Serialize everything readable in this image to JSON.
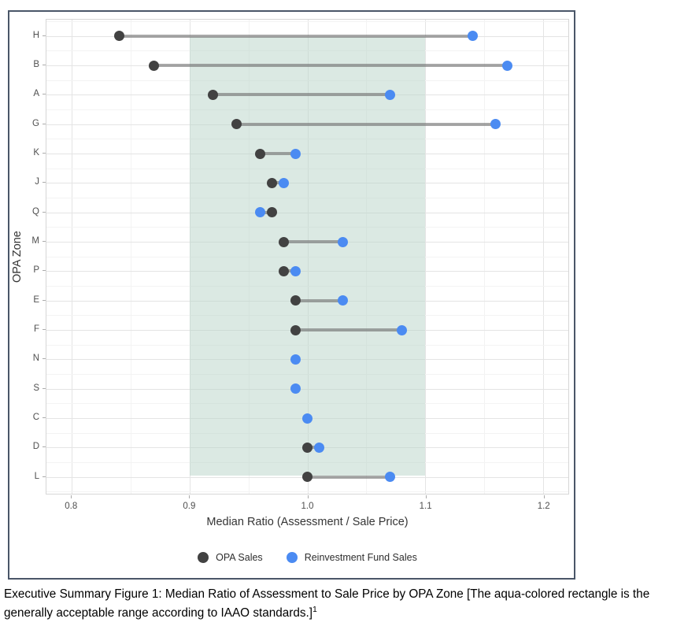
{
  "chart_data": {
    "type": "scatter",
    "variant": "dumbbell",
    "orientation": "horizontal",
    "title": "",
    "xlabel": "Median Ratio (Assessment / Sale Price)",
    "ylabel": "OPA Zone",
    "categories": [
      "H",
      "B",
      "A",
      "G",
      "K",
      "J",
      "Q",
      "M",
      "P",
      "E",
      "F",
      "N",
      "S",
      "C",
      "D",
      "L"
    ],
    "series": [
      {
        "name": "OPA Sales",
        "color": "#424242",
        "values": [
          0.84,
          0.87,
          0.92,
          0.94,
          0.96,
          0.97,
          0.97,
          0.98,
          0.98,
          0.99,
          0.99,
          null,
          null,
          null,
          1.0,
          1.0
        ]
      },
      {
        "name": "Reinvestment Fund Sales",
        "color": "#4b8bf2",
        "values": [
          1.14,
          1.17,
          1.07,
          1.16,
          0.99,
          0.98,
          0.96,
          1.03,
          0.99,
          1.03,
          1.08,
          0.99,
          0.99,
          1.0,
          1.01,
          1.07
        ]
      }
    ],
    "x_ticks": [
      0.8,
      0.9,
      1.0,
      1.1,
      1.2
    ],
    "x_tick_labels": [
      "0.8",
      "0.9",
      "1.0",
      "1.1",
      "1.2"
    ],
    "x_minor_ticks": [
      0.85,
      0.95,
      1.05,
      1.15
    ],
    "xlim": [
      0.7785,
      1.2215
    ],
    "band": {
      "x_min": 0.9,
      "x_max": 1.1,
      "fill": "#b8d4c7",
      "fill_opacity": 0.5
    },
    "connector_color": "#6e6e6e",
    "connector_opacity": 0.6,
    "grid": true,
    "legend_position": "bottom"
  },
  "caption": {
    "line1": "Executive Summary Figure 1: Median Ratio of Assessment to Sale Price by OPA Zone [The aqua-colored rectangle is the",
    "line2": "generally acceptable range according to IAAO standards.]",
    "footnote_mark": "1"
  }
}
